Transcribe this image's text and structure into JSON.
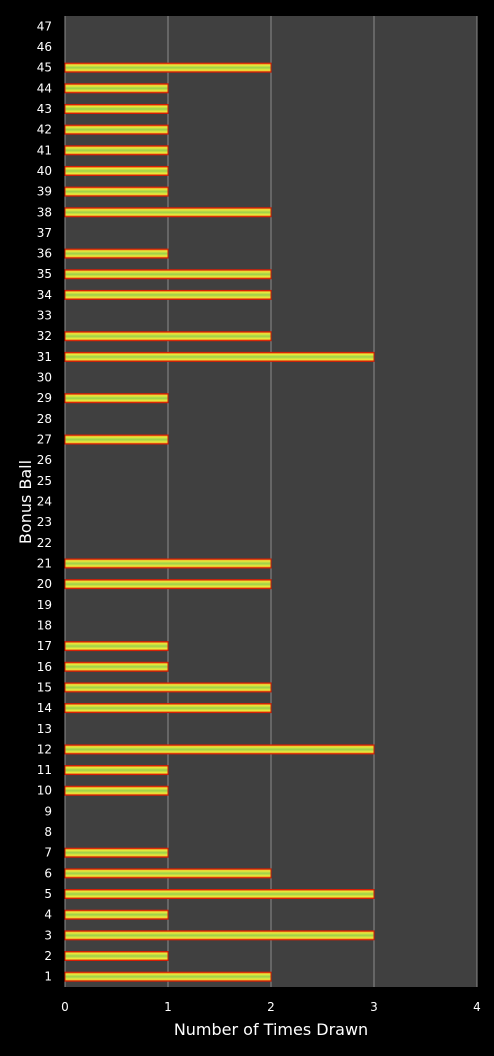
{
  "chart_data": {
    "type": "bar",
    "orientation": "horizontal",
    "title": "",
    "xlabel": "Number of Times Drawn",
    "ylabel": "Bonus Ball",
    "xlim": [
      0,
      4
    ],
    "xticks": [
      0,
      1,
      2,
      3,
      4
    ],
    "grid": "vertical",
    "legend": "none",
    "categories": [
      "1",
      "2",
      "3",
      "4",
      "5",
      "6",
      "7",
      "8",
      "9",
      "10",
      "11",
      "12",
      "13",
      "14",
      "15",
      "16",
      "17",
      "18",
      "19",
      "20",
      "21",
      "22",
      "23",
      "24",
      "25",
      "26",
      "27",
      "28",
      "29",
      "30",
      "31",
      "32",
      "33",
      "34",
      "35",
      "36",
      "37",
      "38",
      "39",
      "40",
      "41",
      "42",
      "43",
      "44",
      "45",
      "46",
      "47"
    ],
    "values": [
      2,
      1,
      3,
      1,
      3,
      2,
      1,
      0,
      0,
      1,
      1,
      3,
      0,
      2,
      2,
      1,
      1,
      0,
      0,
      2,
      2,
      0,
      0,
      0,
      0,
      0,
      1,
      0,
      1,
      0,
      3,
      2,
      0,
      2,
      2,
      1,
      0,
      2,
      1,
      1,
      1,
      1,
      1,
      1,
      2,
      0,
      0
    ]
  },
  "colors": {
    "background": "#000000",
    "plot_area": "#404040",
    "gridline": "#8c8c8c",
    "text": "#ffffff",
    "bar_edge": "#d81e05",
    "bar_mid": "#f2ec3a",
    "bar_center": "#9bd04a"
  }
}
